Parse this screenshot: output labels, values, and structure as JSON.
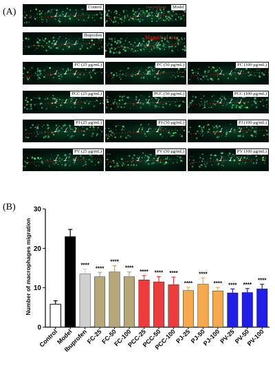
{
  "figure": {
    "panel_a_label": "(A)",
    "panel_b_label": "(B)",
    "images": [
      {
        "label": "Control"
      },
      {
        "label": "Model",
        "annotation": "macrophage"
      },
      {
        "label": "Ibuprofen"
      },
      {
        "label": "",
        "annotation": "Magnified area"
      },
      {
        "label": "FC (25 μg/mL)"
      },
      {
        "label": "FC (50 μg/mL)"
      },
      {
        "label": "FC (100 μg/mL)"
      },
      {
        "label": "PCC (25 μg/mL)"
      },
      {
        "label": "PCC (50 μg/mL)"
      },
      {
        "label": "PCC (100 μg/mL)"
      },
      {
        "label": "PJ (25 μg/mL)"
      },
      {
        "label": "PJ (50 μg/mL)"
      },
      {
        "label": "PJ (100 μg/mL)"
      },
      {
        "label": "PV (25 μg/mL)"
      },
      {
        "label": "PV (50 μg/mL)"
      },
      {
        "label": "PV (100 μg/mL)"
      }
    ]
  },
  "chart_data": {
    "type": "bar",
    "title": "",
    "xlabel": "",
    "ylabel": "Number of macrophages migration",
    "ylim": [
      0,
      30
    ],
    "yticks": [
      0,
      10,
      20,
      30
    ],
    "grid": false,
    "legend": "none",
    "categories": [
      "Control",
      "Model",
      "Ibuprofen",
      "FC-25",
      "FC-50",
      "FC-100",
      "PCC-25",
      "PCC-50",
      "PCC-100",
      "PJ-25",
      "PJ-50",
      "PJ-100",
      "PV-25",
      "PV-50",
      "PV-100"
    ],
    "values": [
      5.8,
      23.0,
      13.5,
      12.8,
      14.0,
      12.8,
      12.0,
      11.5,
      10.8,
      9.3,
      10.9,
      9.2,
      8.7,
      8.8,
      9.7
    ],
    "errors": [
      0.9,
      1.8,
      1.2,
      1.1,
      1.6,
      1.2,
      1.1,
      1.3,
      1.9,
      0.8,
      1.6,
      0.9,
      1.0,
      1.0,
      1.2
    ],
    "significance": [
      "",
      "",
      "****",
      "****",
      "****",
      "****",
      "****",
      "****",
      "****",
      "****",
      "****",
      "****",
      "****",
      "****",
      "****"
    ],
    "colors": [
      "#ffffff",
      "#000000",
      "#d0d0d0",
      "#b5a778",
      "#b5a778",
      "#b5a778",
      "#ee3b3b",
      "#ee3b3b",
      "#ee3b3b",
      "#f6a94c",
      "#f6a94c",
      "#f6a94c",
      "#1f1fe8",
      "#1f1fe8",
      "#1f1fe8"
    ]
  }
}
